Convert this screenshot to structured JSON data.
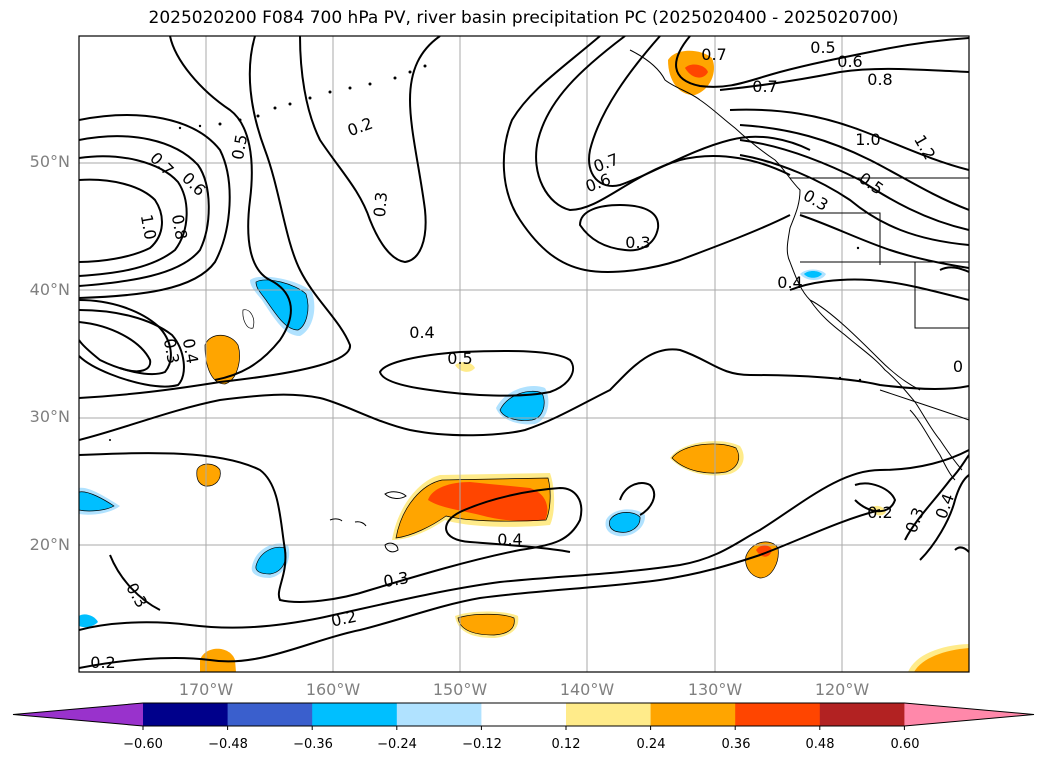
{
  "title": "2025020200 F084 700 hPa PV, river basin precipitation PC (2025020400 - 2025020700)",
  "map": {
    "projection": "PlateCarree",
    "lon_range": [
      "180°W",
      "110°W"
    ],
    "lat_range": [
      "10°N",
      "60°N"
    ],
    "latitude_labels": [
      "50°N",
      "40°N",
      "30°N",
      "20°N"
    ],
    "longitude_labels": [
      "170°W",
      "160°W",
      "150°W",
      "140°W",
      "130°W",
      "120°W"
    ],
    "gridlines": true
  },
  "contour_labels": [
    "0.7",
    "0.5",
    "0.6",
    "0.8",
    "0.7",
    "1.0",
    "1.2",
    "0.2",
    "0.5",
    "0.7",
    "0.6",
    "0.5",
    "0.3",
    "0.3",
    "0.3",
    "0.7",
    "0.6",
    "1.0",
    "0.8",
    "0.4",
    "0.3",
    "0.4",
    "0.5",
    "0.4",
    "0",
    "0.2",
    "0.3",
    "0.4",
    "0.4",
    "0.3",
    "0.3",
    "0.2",
    "0.2"
  ],
  "colorbar": {
    "ticks": [
      "−0.60",
      "−0.48",
      "−0.36",
      "−0.24",
      "−0.12",
      "0.12",
      "0.24",
      "0.36",
      "0.48",
      "0.60"
    ],
    "colors": [
      "#9932cc",
      "#00008b",
      "#3a5fcd",
      "#00bfff",
      "#b0e2ff",
      "#ffffff",
      "#ffeb8a",
      "#ffa500",
      "#ff4500",
      "#b22222",
      "#ff88aa"
    ],
    "extend": "both"
  }
}
